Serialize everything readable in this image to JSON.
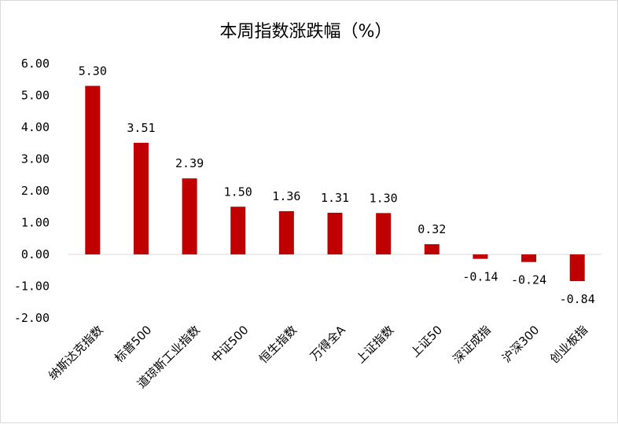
{
  "chart_data": {
    "type": "bar",
    "title": "本周指数涨跌幅（%）",
    "categories": [
      "纳斯达克指数",
      "标普500",
      "道琼斯工业指数",
      "中证500",
      "恒生指数",
      "万得全A",
      "上证指数",
      "上证50",
      "深证成指",
      "沪深300",
      "创业板指"
    ],
    "values": [
      5.3,
      3.51,
      2.39,
      1.5,
      1.36,
      1.31,
      1.3,
      0.32,
      -0.14,
      -0.24,
      -0.84
    ],
    "value_labels": [
      "5.30",
      "3.51",
      "2.39",
      "1.50",
      "1.36",
      "1.31",
      "1.30",
      "0.32",
      "-0.14",
      "-0.24",
      "-0.84"
    ],
    "y_tick_labels": [
      "6.00",
      "5.00",
      "4.00",
      "3.00",
      "2.00",
      "1.00",
      "0.00",
      "-1.00",
      "-2.00"
    ],
    "y_ticks": [
      6,
      5,
      4,
      3,
      2,
      1,
      0,
      -1,
      -2
    ],
    "ylim": [
      -2,
      6
    ],
    "xlabel": "",
    "ylabel": "",
    "grid": false,
    "legend": "none",
    "bar_color": "#C00000"
  }
}
